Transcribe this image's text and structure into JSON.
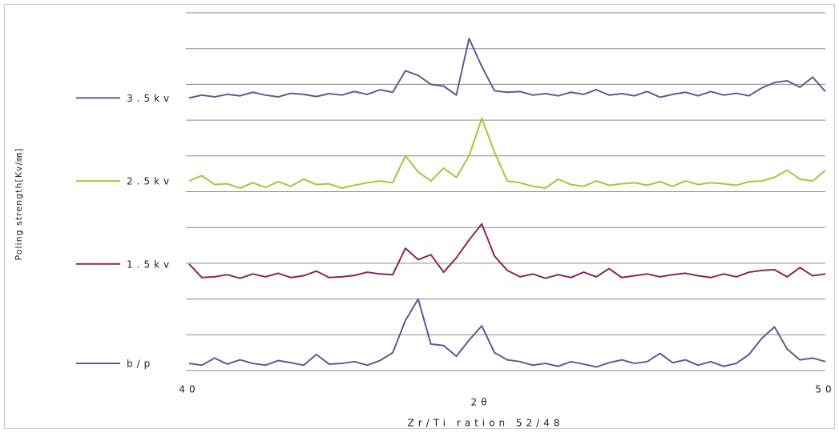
{
  "chart_data": {
    "type": "line",
    "title": "Zr/Ti ration 52/48",
    "xlabel": "2θ",
    "ylabel": "Poling strength[Kv/㎜]",
    "x": [
      40.0,
      40.2,
      40.4,
      40.6,
      40.8,
      41.0,
      41.2,
      41.4,
      41.6,
      41.8,
      42.0,
      42.2,
      42.4,
      42.6,
      42.8,
      43.0,
      43.2,
      43.4,
      43.6,
      43.8,
      44.0,
      44.2,
      44.4,
      44.6,
      44.8,
      45.0,
      45.2,
      45.4,
      45.6,
      45.8,
      46.0,
      46.2,
      46.4,
      46.6,
      46.8,
      47.0,
      47.2,
      47.4,
      47.6,
      47.8,
      48.0,
      48.2,
      48.4,
      48.6,
      48.8,
      49.0,
      49.2,
      49.4,
      49.6,
      49.8,
      50.0
    ],
    "series": [
      {
        "name": "3.5kv",
        "color": "#5d5d8f",
        "values": [
          7.62,
          7.7,
          7.65,
          7.72,
          7.68,
          7.78,
          7.7,
          7.65,
          7.75,
          7.72,
          7.66,
          7.74,
          7.7,
          7.8,
          7.72,
          7.85,
          7.78,
          8.38,
          8.25,
          8.0,
          7.95,
          7.7,
          9.28,
          8.5,
          7.82,
          7.78,
          7.8,
          7.7,
          7.74,
          7.68,
          7.78,
          7.72,
          7.85,
          7.7,
          7.74,
          7.68,
          7.8,
          7.64,
          7.72,
          7.78,
          7.68,
          7.8,
          7.7,
          7.75,
          7.68,
          7.9,
          8.05,
          8.1,
          7.92,
          8.2,
          7.8
        ]
      },
      {
        "name": "2.5kv",
        "color": "#a2c83a",
        "values": [
          5.3,
          5.45,
          5.2,
          5.22,
          5.1,
          5.25,
          5.12,
          5.28,
          5.15,
          5.35,
          5.2,
          5.22,
          5.1,
          5.18,
          5.25,
          5.3,
          5.25,
          6.0,
          5.55,
          5.3,
          5.66,
          5.4,
          6.0,
          7.05,
          6.1,
          5.3,
          5.25,
          5.15,
          5.1,
          5.35,
          5.2,
          5.15,
          5.3,
          5.18,
          5.22,
          5.25,
          5.18,
          5.28,
          5.15,
          5.3,
          5.2,
          5.25,
          5.22,
          5.18,
          5.28,
          5.3,
          5.4,
          5.6,
          5.35,
          5.3,
          5.6
        ]
      },
      {
        "name": "1.5kv",
        "color": "#8c2655",
        "values": [
          2.98,
          2.6,
          2.62,
          2.68,
          2.58,
          2.7,
          2.62,
          2.72,
          2.6,
          2.65,
          2.78,
          2.6,
          2.62,
          2.66,
          2.75,
          2.7,
          2.68,
          3.42,
          3.1,
          3.24,
          2.75,
          3.15,
          3.65,
          4.1,
          3.2,
          2.8,
          2.62,
          2.7,
          2.58,
          2.68,
          2.6,
          2.75,
          2.62,
          2.85,
          2.6,
          2.65,
          2.7,
          2.62,
          2.68,
          2.72,
          2.65,
          2.6,
          2.7,
          2.62,
          2.75,
          2.8,
          2.82,
          2.62,
          2.88,
          2.65,
          2.7
        ]
      },
      {
        "name": "b/p",
        "color": "#5b5b95",
        "values": [
          0.2,
          0.15,
          0.35,
          0.18,
          0.3,
          0.2,
          0.15,
          0.28,
          0.22,
          0.15,
          0.45,
          0.18,
          0.2,
          0.25,
          0.15,
          0.28,
          0.5,
          1.4,
          2.0,
          0.74,
          0.7,
          0.4,
          0.85,
          1.25,
          0.5,
          0.3,
          0.25,
          0.15,
          0.2,
          0.12,
          0.25,
          0.18,
          0.1,
          0.22,
          0.3,
          0.2,
          0.25,
          0.48,
          0.22,
          0.3,
          0.15,
          0.25,
          0.12,
          0.2,
          0.45,
          0.9,
          1.22,
          0.6,
          0.3,
          0.35,
          0.25
        ]
      }
    ],
    "xlim": [
      40,
      50
    ],
    "xticks": [
      40,
      50
    ],
    "ylim": [
      0,
      10
    ],
    "yticks": [
      0,
      1,
      2,
      3,
      4,
      5,
      6,
      7,
      8,
      9,
      10
    ],
    "ytick_labels": false,
    "grid": true,
    "legend": "left"
  }
}
